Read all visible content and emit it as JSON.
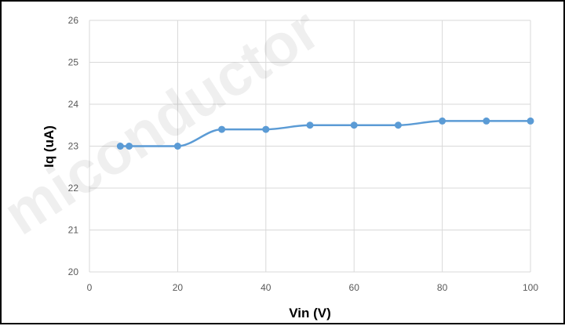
{
  "watermark_text": "miconductor",
  "chart_data": {
    "type": "line",
    "title": "",
    "xlabel": "Vin (V)",
    "ylabel": "Iq (uA)",
    "xlim": [
      0,
      100
    ],
    "ylim": [
      20,
      26
    ],
    "x_ticks": [
      0,
      20,
      40,
      60,
      80,
      100
    ],
    "y_ticks": [
      20,
      21,
      22,
      23,
      24,
      25,
      26
    ],
    "grid": true,
    "legend": "none",
    "smooth": true,
    "series": [
      {
        "color": "#5b9bd5",
        "points": [
          {
            "x": 7,
            "y": 23.0
          },
          {
            "x": 9,
            "y": 23.0
          },
          {
            "x": 20,
            "y": 23.0
          },
          {
            "x": 30,
            "y": 23.4
          },
          {
            "x": 40,
            "y": 23.4
          },
          {
            "x": 50,
            "y": 23.5
          },
          {
            "x": 60,
            "y": 23.5
          },
          {
            "x": 70,
            "y": 23.5
          },
          {
            "x": 80,
            "y": 23.6
          },
          {
            "x": 90,
            "y": 23.6
          },
          {
            "x": 100,
            "y": 23.6
          }
        ]
      }
    ]
  }
}
